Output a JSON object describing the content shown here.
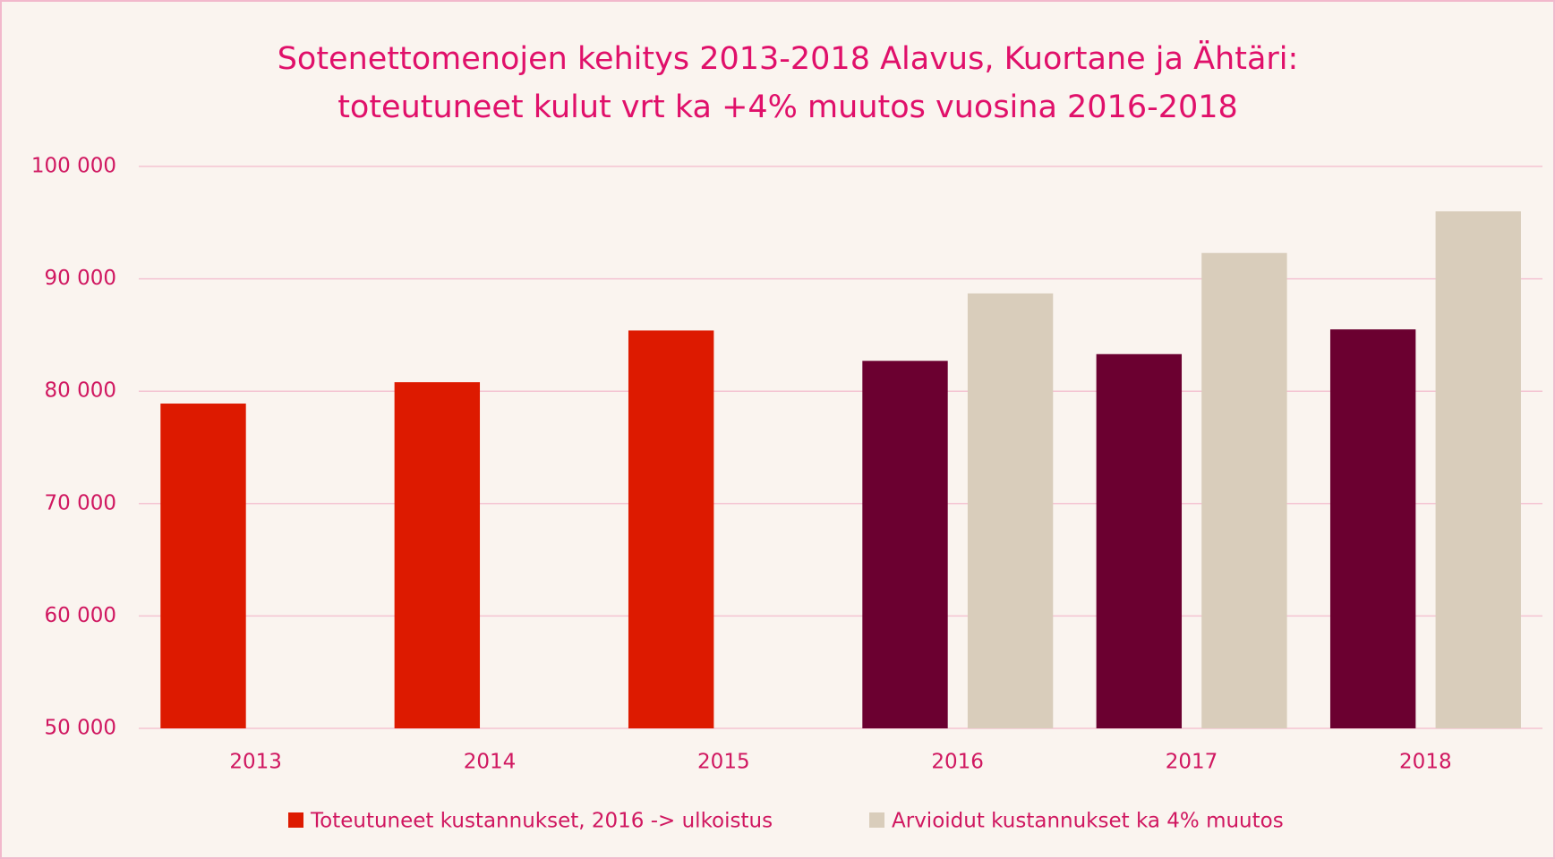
{
  "chart_data": {
    "type": "bar",
    "title": [
      "Sotenettomenojen  kehitys 2013-2018 Alavus, Kuortane ja Ähtäri:",
      "toteutuneet kulut vrt ka +4% muutos vuosina 2016-2018"
    ],
    "categories": [
      "2013",
      "2014",
      "2015",
      "2016",
      "2017",
      "2018"
    ],
    "series": [
      {
        "name": "Toteutuneet kustannukset, 2016 -> ulkoistus",
        "color": "#dd1a00",
        "point_colors": [
          "#dd1a00",
          "#dd1a00",
          "#dd1a00",
          "#6b0030",
          "#6b0030",
          "#6b0030"
        ],
        "values": [
          78900,
          80800,
          85400,
          82700,
          83300,
          85500
        ]
      },
      {
        "name": "Arvioidut kustannukset ka 4% muutos",
        "color": "#d9cdbb",
        "values": [
          null,
          null,
          null,
          88700,
          92300,
          96000
        ]
      }
    ],
    "ylim": [
      50000,
      100000
    ],
    "yticks": [
      {
        "value": 50000,
        "label": "50 000"
      },
      {
        "value": 60000,
        "label": "60 000"
      },
      {
        "value": 70000,
        "label": "70 000"
      },
      {
        "value": 80000,
        "label": "80 000"
      },
      {
        "value": 90000,
        "label": "90 000"
      },
      {
        "value": 100000,
        "label": "100 000"
      }
    ],
    "grid": true,
    "legend": "bottom"
  }
}
